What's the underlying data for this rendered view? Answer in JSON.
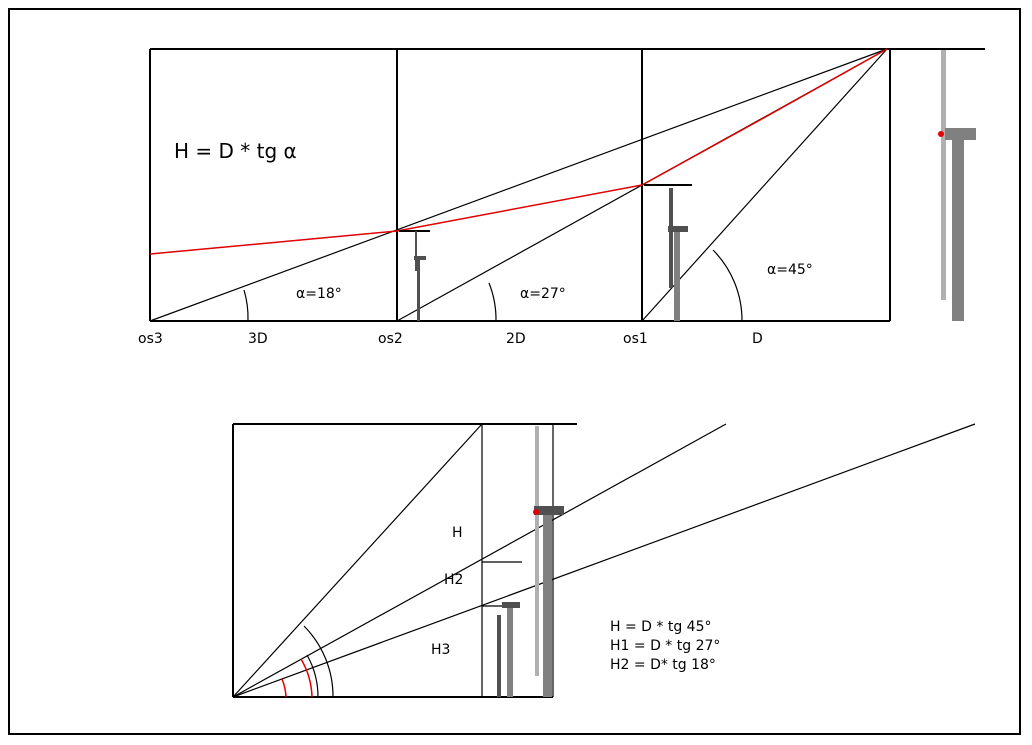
{
  "top_diagram": {
    "formula": "H = D * tg α",
    "angles": [
      "α=18°",
      "α=27°",
      "α=45°"
    ],
    "positions": [
      "os3",
      "3D",
      "os2",
      "2D",
      "os1",
      "D"
    ]
  },
  "bottom_diagram": {
    "heights": [
      "H",
      "H2",
      "H3"
    ],
    "formulas": [
      "H = D * tg 45°",
      "H1 = D * tg 27°",
      "H2 = D* tg 18°"
    ]
  }
}
